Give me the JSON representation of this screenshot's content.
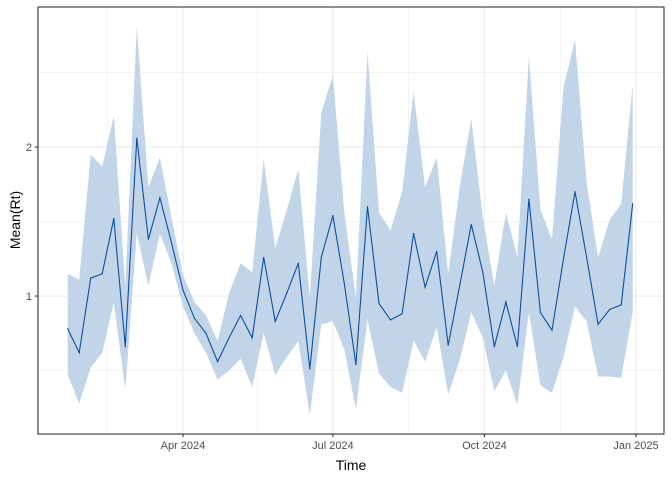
{
  "chart_data": {
    "type": "line",
    "title": "",
    "xlabel": "Time",
    "ylabel": "Mean(Rt)",
    "xlim": [
      "2024-01-04",
      "2025-01-18"
    ],
    "ylim": [
      0.074,
      2.94
    ],
    "grid": true,
    "x_ticks": [
      {
        "date": "2024-04-01",
        "label": "Apr 2024"
      },
      {
        "date": "2024-07-01",
        "label": "Jul 2024"
      },
      {
        "date": "2024-10-01",
        "label": "Oct 2024"
      },
      {
        "date": "2025-01-01",
        "label": "Jan 2025"
      }
    ],
    "x_minor_ticks": [
      "2024-02-15",
      "2024-05-16",
      "2024-08-16",
      "2024-11-16"
    ],
    "y_ticks": [
      {
        "value": 1,
        "label": "1"
      },
      {
        "value": 2,
        "label": "2"
      }
    ],
    "y_minor_ticks": [
      0.5,
      1.5,
      2.5
    ],
    "colors": {
      "line": "#0b4f9e",
      "band": "#c2d4e8",
      "grid": "#ebebeb",
      "border": "#333333"
    },
    "series": [
      {
        "first_date": "2024-01-22",
        "interval_days": 7,
        "mean": [
          0.78,
          0.62,
          1.12,
          1.15,
          1.52,
          0.66,
          2.06,
          1.38,
          1.66,
          1.36,
          1.04,
          0.85,
          0.75,
          0.56,
          0.72,
          0.87,
          0.72,
          1.26,
          0.83,
          1.02,
          1.22,
          0.51,
          1.26,
          1.54,
          1.08,
          0.54,
          1.6,
          0.95,
          0.84,
          0.88,
          1.42,
          1.06,
          1.3,
          0.67,
          1.07,
          1.48,
          1.16,
          0.66,
          0.96,
          0.66,
          1.65,
          0.89,
          0.77,
          1.25,
          1.7,
          1.26,
          0.81,
          0.91,
          0.94,
          1.62
        ],
        "upper": [
          1.15,
          1.11,
          1.95,
          1.87,
          2.21,
          1.06,
          2.81,
          1.73,
          1.93,
          1.53,
          1.14,
          0.96,
          0.87,
          0.7,
          1.02,
          1.22,
          1.16,
          1.92,
          1.32,
          1.58,
          1.85,
          0.99,
          2.23,
          2.48,
          1.56,
          0.99,
          2.64,
          1.56,
          1.44,
          1.7,
          2.37,
          1.73,
          1.93,
          1.15,
          1.73,
          2.19,
          1.53,
          1.07,
          1.56,
          1.26,
          2.61,
          1.58,
          1.38,
          2.4,
          2.72,
          1.76,
          1.26,
          1.51,
          1.62,
          2.42
        ],
        "lower": [
          0.47,
          0.28,
          0.52,
          0.62,
          0.96,
          0.37,
          1.42,
          1.07,
          1.42,
          1.22,
          0.93,
          0.75,
          0.62,
          0.44,
          0.5,
          0.58,
          0.39,
          0.75,
          0.47,
          0.59,
          0.7,
          0.2,
          0.81,
          0.83,
          0.64,
          0.24,
          0.84,
          0.48,
          0.39,
          0.35,
          0.7,
          0.56,
          0.79,
          0.34,
          0.57,
          0.89,
          0.72,
          0.36,
          0.5,
          0.27,
          0.89,
          0.4,
          0.35,
          0.59,
          0.93,
          0.83,
          0.46,
          0.46,
          0.45,
          0.89
        ]
      }
    ]
  }
}
